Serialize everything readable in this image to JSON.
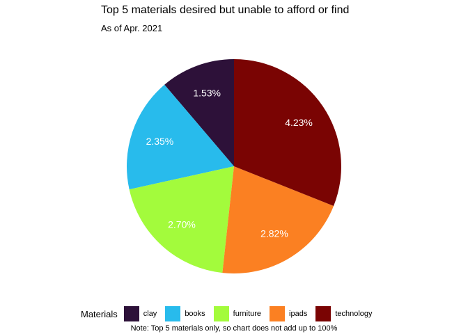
{
  "chart_data": {
    "type": "pie",
    "title": "Top 5 materials desired but unable to afford or find",
    "subtitle": "As of Apr. 2021",
    "legend_title": "Materials",
    "legend_position": "bottom",
    "note": "Note: Top 5 materials only, so chart does not add up to 100%",
    "categories": [
      "clay",
      "books",
      "furniture",
      "ipads",
      "technology"
    ],
    "values": [
      1.53,
      2.35,
      2.7,
      2.82,
      4.23
    ],
    "labels": [
      "1.53%",
      "2.35%",
      "2.70%",
      "2.82%",
      "4.23%"
    ],
    "colors": [
      "#2d1139",
      "#28bbec",
      "#a3fb3c",
      "#fb8022",
      "#7a0403"
    ],
    "label_color": "#ffffff"
  }
}
